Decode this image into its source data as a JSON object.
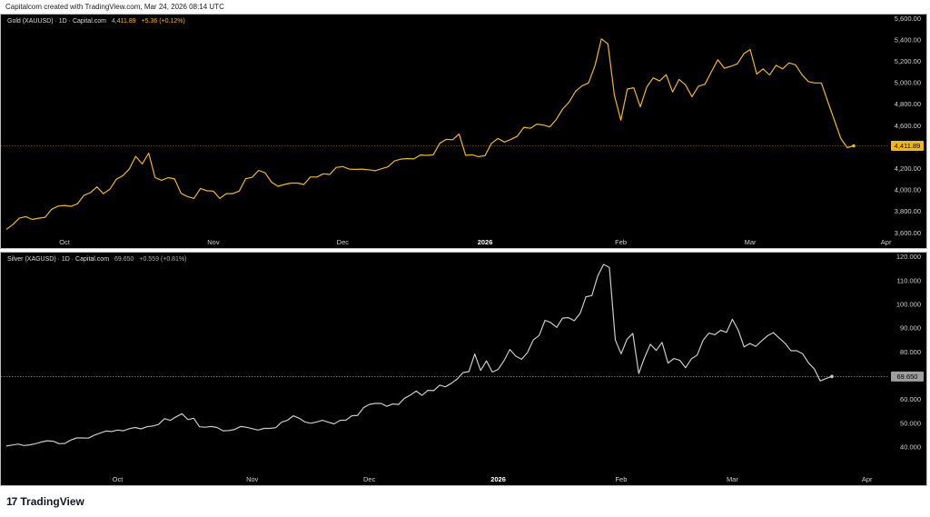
{
  "credit": "Capitalcom created with TradingView.com, Mar 24, 2026 08:14 UTC",
  "footer": {
    "brand": "TradingView",
    "logo_icon": "tradingview-logo-icon"
  },
  "colors": {
    "gold": "#f2b90c",
    "silver": "#c9c9c9",
    "silver_badge": "#9e9e9e",
    "background": "#000000"
  },
  "chart_data": [
    {
      "type": "line",
      "symbol": "Gold (XAUUSD) · 1D · Capital.com",
      "last": "4,411.89",
      "change": "+5.36 (+0.12%)",
      "last_value": 4411.89,
      "y_ticks": [
        "5,600.00",
        "5,400.00",
        "5,200.00",
        "5,000.00",
        "4,800.00",
        "4,600.00",
        "4,200.00",
        "4,000.00",
        "3,800.00",
        "3,600.00"
      ],
      "y_tick_values": [
        5600,
        5400,
        5200,
        5000,
        4800,
        4600,
        4200,
        4000,
        3800,
        3600
      ],
      "ylim": [
        3560,
        5620
      ],
      "x_ticks": [
        {
          "label": "Oct",
          "index": 9
        },
        {
          "label": "Nov",
          "index": 32
        },
        {
          "label": "Dec",
          "index": 52
        },
        {
          "label": "2026",
          "index": 74,
          "bold": true
        },
        {
          "label": "Feb",
          "index": 95
        },
        {
          "label": "Mar",
          "index": 115
        },
        {
          "label": "Apr",
          "index": 136
        }
      ],
      "values": [
        3633,
        3677,
        3737,
        3752,
        3725,
        3737,
        3746,
        3820,
        3850,
        3856,
        3847,
        3871,
        3951,
        3975,
        4029,
        3966,
        4008,
        4100,
        4133,
        4195,
        4314,
        4243,
        4344,
        4115,
        4091,
        4115,
        4103,
        3969,
        3939,
        3921,
        4014,
        3993,
        3990,
        3921,
        3966,
        3966,
        3990,
        4106,
        4118,
        4183,
        4160,
        4073,
        4035,
        4052,
        4064,
        4064,
        4052,
        4121,
        4121,
        4151,
        4145,
        4210,
        4219,
        4195,
        4192,
        4195,
        4189,
        4180,
        4198,
        4216,
        4270,
        4288,
        4293,
        4290,
        4326,
        4323,
        4329,
        4436,
        4472,
        4469,
        4523,
        4323,
        4329,
        4311,
        4320,
        4436,
        4481,
        4448,
        4472,
        4502,
        4585,
        4576,
        4615,
        4606,
        4588,
        4657,
        4755,
        4820,
        4921,
        4972,
        4999,
        5160,
        5410,
        5362,
        4883,
        4651,
        4942,
        4954,
        4776,
        4960,
        5046,
        5017,
        5076,
        4915,
        5032,
        4981,
        4871,
        4969,
        4987,
        5103,
        5216,
        5136,
        5154,
        5177,
        5270,
        5311,
        5082,
        5130,
        5073,
        5163,
        5130,
        5186,
        5168,
        5076,
        5011,
        4999,
        4999,
        4823,
        4654,
        4481,
        4395,
        4411.89
      ]
    },
    {
      "type": "line",
      "symbol": "Silver (XAGUSD) · 1D · Capital.com",
      "last": "69.650",
      "change": "+0.559 (+0.81%)",
      "last_value": 69.65,
      "y_ticks": [
        "120.000",
        "110.000",
        "100.000",
        "90.000",
        "80.000",
        "60.000",
        "50.000",
        "40.000"
      ],
      "y_tick_values": [
        120,
        110,
        100,
        90,
        80,
        60,
        50,
        40
      ],
      "ylim": [
        28.5,
        121
      ],
      "x_ticks": [
        {
          "label": "Oct",
          "index": 19
        },
        {
          "label": "Nov",
          "index": 42
        },
        {
          "label": "Dec",
          "index": 62
        },
        {
          "label": "2026",
          "index": 84,
          "bold": true
        },
        {
          "label": "Feb",
          "index": 105
        },
        {
          "label": "Mar",
          "index": 124
        },
        {
          "label": "Apr",
          "index": 147
        }
      ],
      "values": [
        40.4,
        40.8,
        41.2,
        40.6,
        40.9,
        41.4,
        42.1,
        42.6,
        42.4,
        41.4,
        41.5,
        42.9,
        43.8,
        43.8,
        43.7,
        44.9,
        45.8,
        46.7,
        46.5,
        47.1,
        46.8,
        47.7,
        48.2,
        47.6,
        48.5,
        48.8,
        49.5,
        51.9,
        51.2,
        52.7,
        54.0,
        51.5,
        52.1,
        48.5,
        48.3,
        48.6,
        48.2,
        46.8,
        46.9,
        47.4,
        48.6,
        48.3,
        47.7,
        47.1,
        47.8,
        47.8,
        48.1,
        50.4,
        51.2,
        53.1,
        52.1,
        50.5,
        50.0,
        50.5,
        51.2,
        50.4,
        49.7,
        51.2,
        51.3,
        53.1,
        53.3,
        56.5,
        57.9,
        58.3,
        58.3,
        57.1,
        58.1,
        57.9,
        60.5,
        61.8,
        63.5,
        61.7,
        63.8,
        63.7,
        66.0,
        65.3,
        66.8,
        68.6,
        71.3,
        71.7,
        79.1,
        72.2,
        76.2,
        71.5,
        72.6,
        76.3,
        81.0,
        78.2,
        76.9,
        79.7,
        85.0,
        86.9,
        93.3,
        92.3,
        90.3,
        94.2,
        94.4,
        93.1,
        96.2,
        103.2,
        103.7,
        111.9,
        116.8,
        115.5,
        85.0,
        79.2,
        85.3,
        87.8,
        70.9,
        77.6,
        83.2,
        80.6,
        84.0,
        75.3,
        77.2,
        76.5,
        73.3,
        77.1,
        78.7,
        84.9,
        87.9,
        87.2,
        89.1,
        88.2,
        93.7,
        89.1,
        82.1,
        83.5,
        82.3,
        84.6,
        86.8,
        88.1,
        85.8,
        83.6,
        80.5,
        80.5,
        79.2,
        75.4,
        72.8,
        67.8,
        68.8,
        69.65
      ]
    }
  ]
}
